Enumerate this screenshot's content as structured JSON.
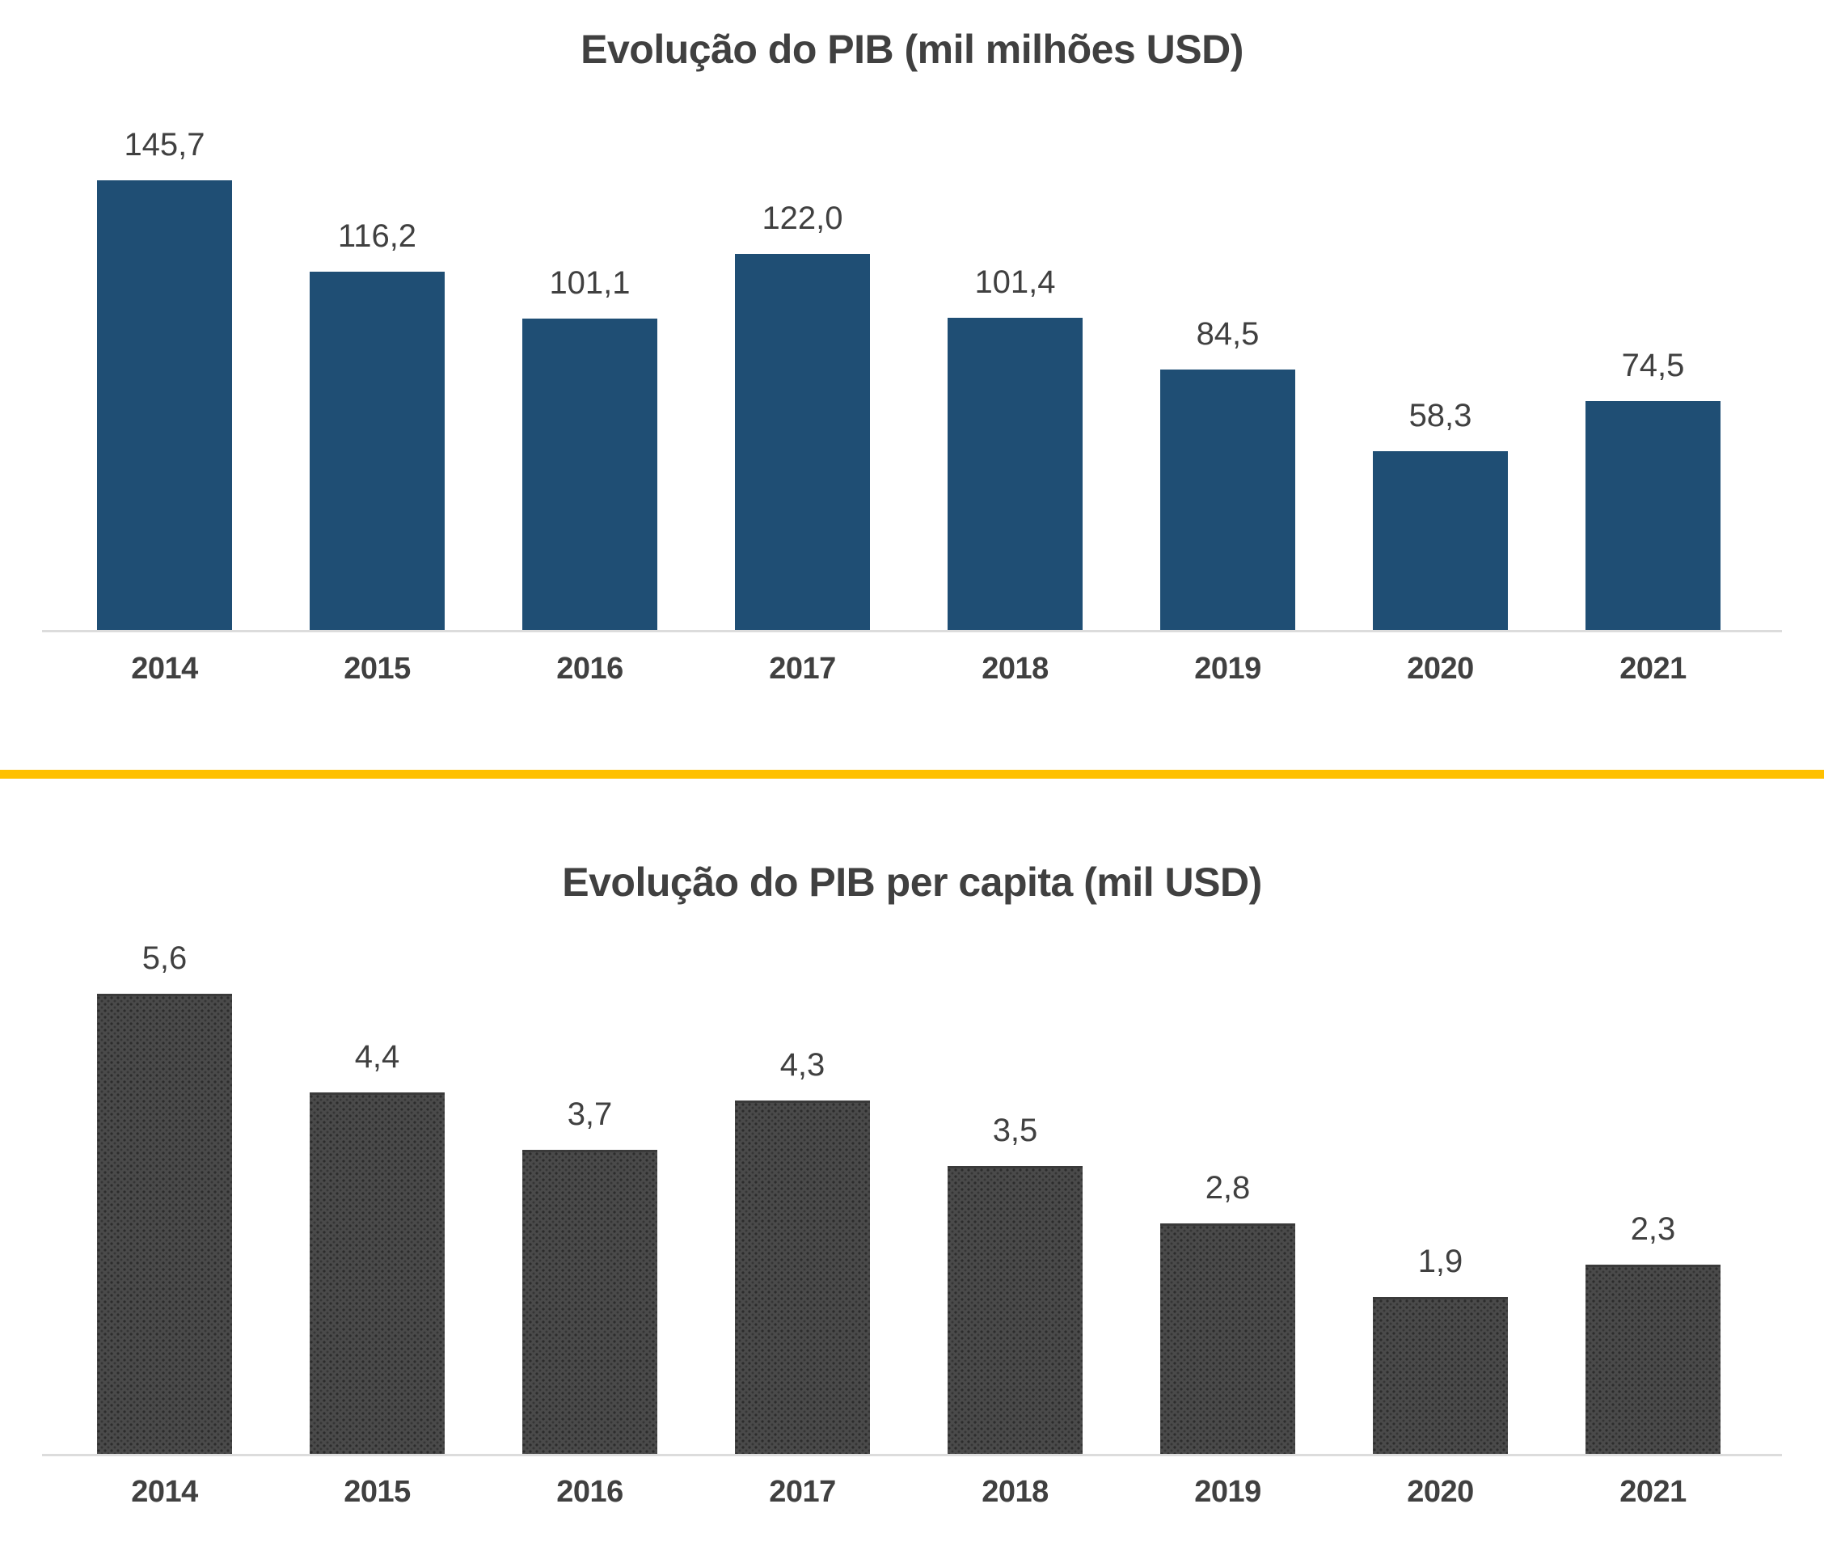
{
  "page": {
    "background_color": "#FFFFFF",
    "divider_color": "#FFC000",
    "text_color": "#404040",
    "axis_color": "#DCDCDC"
  },
  "chart_data": [
    {
      "type": "bar",
      "title": "Evolução do PIB (mil milhões USD)",
      "categories": [
        "2014",
        "2015",
        "2016",
        "2017",
        "2018",
        "2019",
        "2020",
        "2021"
      ],
      "values": [
        145.7,
        116.2,
        101.1,
        122.0,
        101.4,
        84.5,
        58.3,
        74.5
      ],
      "value_labels": [
        "145,7",
        "116,2",
        "101,1",
        "122,0",
        "101,4",
        "84,5",
        "58,3",
        "74,5"
      ],
      "bar_color": "#1F4E74",
      "bar_pattern": "solid",
      "xlabel": "",
      "ylabel": "",
      "ylim": [
        0,
        160
      ],
      "grid": false,
      "legend": "none",
      "data_labels": "above-bars"
    },
    {
      "type": "bar",
      "title": "Evolução do PIB per capita (mil USD)",
      "categories": [
        "2014",
        "2015",
        "2016",
        "2017",
        "2018",
        "2019",
        "2020",
        "2021"
      ],
      "values": [
        5.6,
        4.4,
        3.7,
        4.3,
        3.5,
        2.8,
        1.9,
        2.3
      ],
      "value_labels": [
        "5,6",
        "4,4",
        "3,7",
        "4,3",
        "3,5",
        "2,8",
        "1,9",
        "2,3"
      ],
      "bar_color": "#4A4A4A",
      "bar_pattern": "dotted",
      "xlabel": "",
      "ylabel": "",
      "ylim": [
        0,
        6
      ],
      "grid": false,
      "legend": "none",
      "data_labels": "above-bars"
    }
  ]
}
